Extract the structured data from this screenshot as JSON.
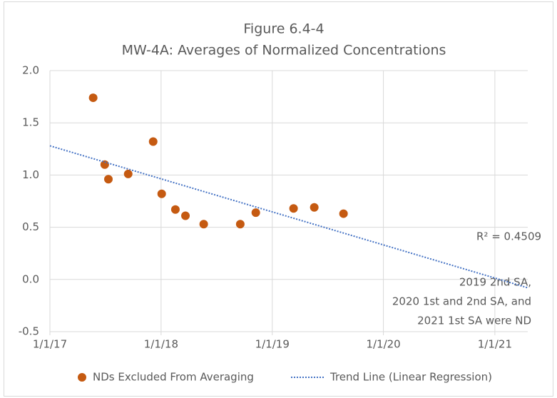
{
  "chart_data": {
    "type": "scatter",
    "title": "Figure 6.4-4",
    "subtitle": "MW-4A: Averages of Normalized Concentrations",
    "series": [
      {
        "name": "NDs Excluded From Averaging",
        "type": "scatter",
        "color": "#c55a11",
        "x": [
          "5/23/17",
          "6/30/17",
          "7/12/17",
          "9/15/17",
          "12/6/17",
          "1/3/18",
          "2/17/18",
          "3/22/18",
          "5/21/18",
          "9/18/18",
          "11/8/18",
          "3/12/19",
          "5/19/19",
          "8/23/19"
        ],
        "values": [
          1.74,
          1.1,
          0.96,
          1.01,
          1.32,
          0.82,
          0.67,
          0.61,
          0.53,
          0.53,
          0.64,
          0.68,
          0.69,
          0.63
        ]
      },
      {
        "name": "Trend Line (Linear Regression)",
        "type": "line",
        "color": "#4472c4",
        "x": [
          "1/1/17",
          "4/19/21"
        ],
        "values": [
          1.28,
          -0.08
        ]
      }
    ],
    "xlim": [
      "1/1/17",
      "4/19/21"
    ],
    "xticks": [
      "1/1/17",
      "1/1/18",
      "1/1/19",
      "1/1/20",
      "1/1/21"
    ],
    "ylim": [
      -0.5,
      2
    ],
    "yticks": [
      {
        "value": -0.5,
        "label": "-0.5"
      },
      {
        "value": 0,
        "label": "0.0"
      },
      {
        "value": 0.5,
        "label": "0.5"
      },
      {
        "value": 1,
        "label": "1.0"
      },
      {
        "value": 1.5,
        "label": "1.5"
      },
      {
        "value": 2,
        "label": "2.0"
      }
    ],
    "grid": true,
    "legend": "bottom",
    "annotations": [
      "R² = 0.4509",
      "2019 2nd SA,",
      "2020 1st and 2nd SA, and",
      "2021 1st SA were ND"
    ]
  }
}
